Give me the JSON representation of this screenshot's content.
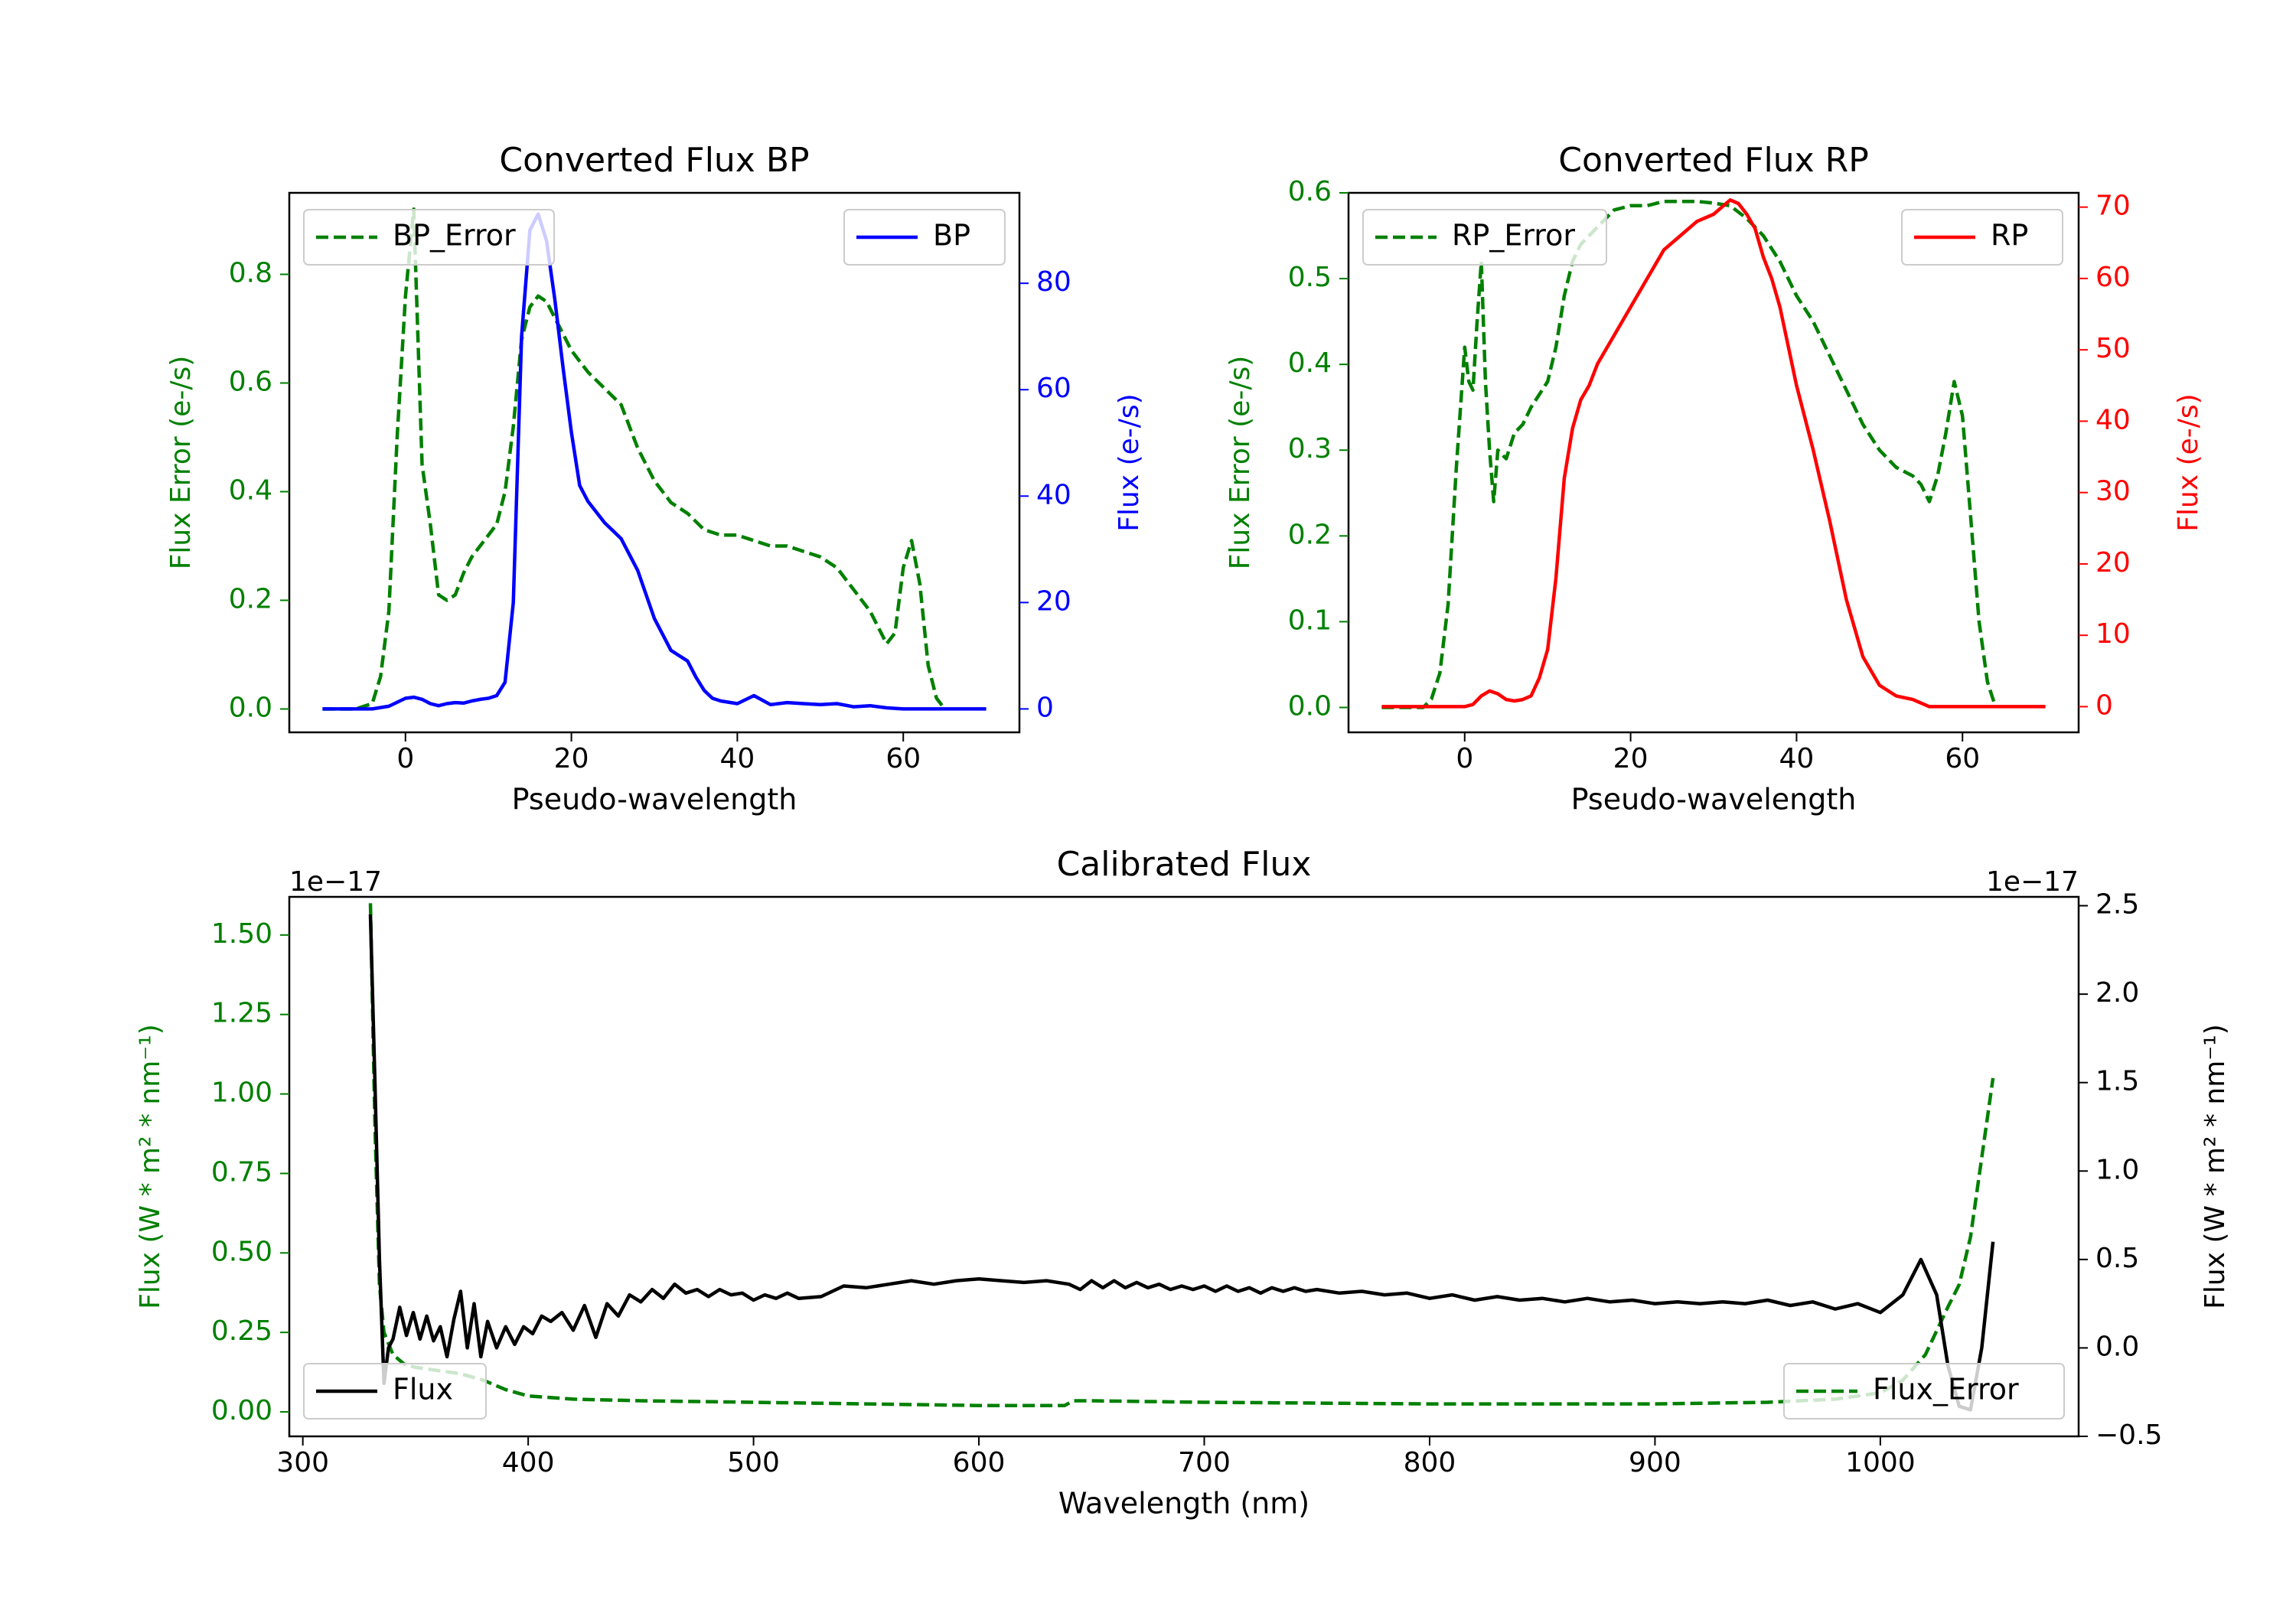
{
  "colors": {
    "bp": "#0000ff",
    "rp": "#ff0000",
    "error": "#008000",
    "flux": "#000000"
  },
  "chart_data": [
    {
      "type": "line",
      "title": "Converted Flux BP",
      "xlabel": "Pseudo-wavelength",
      "ylabel_left": "Flux Error (e-/s)",
      "ylabel_right": "Flux (e-/s)",
      "xlim": [
        -14,
        74
      ],
      "ylim_left": [
        -0.043,
        0.95
      ],
      "ylim_right": [
        -4.4,
        97
      ],
      "xticks": [
        "0",
        "20",
        "40",
        "60"
      ],
      "yticks_left": [
        "0.0",
        "0.2",
        "0.4",
        "0.6",
        "0.8"
      ],
      "yticks_right": [
        "0",
        "20",
        "40",
        "60",
        "80"
      ],
      "legend_left_label": "BP_Error",
      "legend_right_label": "BP",
      "series": [
        {
          "name": "BP_Error",
          "axis": "left",
          "style": "dashed",
          "x": [
            -10,
            -6,
            -4,
            -3,
            -2,
            -1,
            0,
            1,
            2,
            3,
            4,
            5,
            6,
            7,
            8,
            9,
            10,
            11,
            12,
            13,
            14,
            15,
            16,
            17,
            18,
            19,
            20,
            21,
            22,
            24,
            26,
            28,
            30,
            32,
            34,
            36,
            38,
            40,
            42,
            44,
            46,
            48,
            50,
            52,
            54,
            56,
            57,
            58,
            59,
            60,
            61,
            62,
            63,
            64,
            65
          ],
          "y": [
            0,
            0,
            0.01,
            0.06,
            0.18,
            0.5,
            0.76,
            0.92,
            0.45,
            0.34,
            0.21,
            0.2,
            0.21,
            0.25,
            0.28,
            0.3,
            0.32,
            0.34,
            0.4,
            0.52,
            0.68,
            0.74,
            0.76,
            0.75,
            0.72,
            0.69,
            0.66,
            0.64,
            0.62,
            0.59,
            0.56,
            0.48,
            0.42,
            0.38,
            0.36,
            0.33,
            0.32,
            0.32,
            0.31,
            0.3,
            0.3,
            0.29,
            0.28,
            0.26,
            0.22,
            0.18,
            0.15,
            0.12,
            0.14,
            0.26,
            0.31,
            0.23,
            0.08,
            0.02,
            0
          ]
        },
        {
          "name": "BP",
          "axis": "right",
          "style": "solid",
          "x": [
            -10,
            -4,
            -2,
            0,
            1,
            2,
            3,
            4,
            5,
            6,
            7,
            8,
            9,
            10,
            11,
            12,
            13,
            14,
            15,
            16,
            17,
            18,
            19,
            20,
            21,
            22,
            24,
            26,
            28,
            30,
            32,
            33,
            34,
            35,
            36,
            37,
            38,
            40,
            42,
            44,
            46,
            48,
            50,
            52,
            54,
            56,
            58,
            60,
            62,
            64,
            66,
            68,
            70
          ],
          "y": [
            0,
            0,
            0.5,
            2,
            2.2,
            1.8,
            1,
            0.6,
            1,
            1.2,
            1.1,
            1.5,
            1.8,
            2,
            2.5,
            5,
            20,
            70,
            90,
            93,
            88,
            77,
            64,
            52,
            42,
            39,
            35,
            32,
            26,
            17,
            11,
            10,
            9,
            6,
            3.5,
            2,
            1.5,
            1,
            2.5,
            0.8,
            1.2,
            1,
            0.8,
            1,
            0.4,
            0.6,
            0.2,
            0,
            0,
            0,
            0,
            0,
            0
          ]
        }
      ]
    },
    {
      "type": "line",
      "title": "Converted Flux RP",
      "xlabel": "Pseudo-wavelength",
      "ylabel_left": "Flux Error (e-/s)",
      "ylabel_right": "Flux (e-/s)",
      "xlim": [
        -14,
        74
      ],
      "ylim_left": [
        -0.029,
        0.6
      ],
      "ylim_right": [
        -3.6,
        72
      ],
      "xticks": [
        "0",
        "20",
        "40",
        "60"
      ],
      "yticks_left": [
        "0.0",
        "0.1",
        "0.2",
        "0.3",
        "0.4",
        "0.5",
        "0.6"
      ],
      "yticks_right": [
        "0",
        "10",
        "20",
        "30",
        "40",
        "50",
        "60",
        "70"
      ],
      "legend_left_label": "RP_Error",
      "legend_right_label": "RP",
      "series": [
        {
          "name": "RP_Error",
          "axis": "left",
          "style": "dashed",
          "x": [
            -10,
            -5,
            -4,
            -3,
            -2,
            -1,
            0,
            0.5,
            1,
            1.5,
            2,
            2.5,
            3,
            3.5,
            4,
            5,
            6,
            7,
            8,
            10,
            11,
            12,
            13,
            14,
            15,
            16,
            17,
            18,
            20,
            22,
            24,
            26,
            28,
            30,
            32,
            34,
            36,
            38,
            40,
            42,
            44,
            46,
            48,
            50,
            52,
            54,
            55,
            56,
            57,
            58,
            59,
            60,
            61,
            62,
            63,
            64
          ],
          "y": [
            0,
            0,
            0.01,
            0.04,
            0.12,
            0.28,
            0.42,
            0.38,
            0.37,
            0.45,
            0.52,
            0.38,
            0.3,
            0.24,
            0.3,
            0.29,
            0.32,
            0.33,
            0.35,
            0.38,
            0.42,
            0.48,
            0.52,
            0.54,
            0.55,
            0.56,
            0.57,
            0.58,
            0.585,
            0.585,
            0.59,
            0.59,
            0.59,
            0.588,
            0.585,
            0.57,
            0.55,
            0.52,
            0.48,
            0.45,
            0.41,
            0.37,
            0.33,
            0.3,
            0.28,
            0.27,
            0.26,
            0.24,
            0.27,
            0.32,
            0.38,
            0.34,
            0.22,
            0.1,
            0.03,
            0
          ]
        },
        {
          "name": "RP",
          "axis": "right",
          "style": "solid",
          "x": [
            -10,
            -2,
            0,
            1,
            2,
            3,
            4,
            5,
            6,
            7,
            8,
            9,
            10,
            11,
            12,
            13,
            14,
            15,
            16,
            18,
            20,
            22,
            24,
            26,
            28,
            30,
            31,
            32,
            33,
            34,
            35,
            36,
            37,
            38,
            40,
            42,
            44,
            46,
            48,
            50,
            52,
            54,
            56,
            58,
            60,
            62,
            64,
            66,
            68,
            70
          ],
          "y": [
            0,
            0,
            0,
            0.3,
            1.5,
            2.2,
            1.8,
            1,
            0.8,
            1,
            1.5,
            4,
            8,
            18,
            32,
            39,
            43,
            45,
            48,
            52,
            56,
            60,
            64,
            66,
            68,
            69,
            70,
            71,
            70.5,
            69,
            67,
            63,
            60,
            56,
            45,
            36,
            26,
            15,
            7,
            3,
            1.5,
            1,
            0,
            0,
            0,
            0,
            0,
            0,
            0,
            0
          ]
        }
      ]
    },
    {
      "type": "line",
      "title": "Calibrated Flux",
      "xlabel": "Wavelength (nm)",
      "ylabel_left": "Flux (W * m² * nm⁻¹)",
      "ylabel_right": "Flux (W * m² * nm⁻¹)",
      "offset_left": "1e−17",
      "offset_right": "1e−17",
      "xlim": [
        294,
        1088
      ],
      "ylim_left": [
        -0.077,
        1.62
      ],
      "ylim_right": [
        -0.5,
        2.55
      ],
      "xticks": [
        "300",
        "400",
        "500",
        "600",
        "700",
        "800",
        "900",
        "1000"
      ],
      "yticks_left": [
        "0.00",
        "0.25",
        "0.50",
        "0.75",
        "1.00",
        "1.25",
        "1.50"
      ],
      "yticks_right": [
        "−0.5",
        "0.0",
        "0.5",
        "1.0",
        "1.5",
        "2.0",
        "2.5"
      ],
      "legend_left_label": "Flux",
      "legend_right_label": "Flux_Error",
      "series": [
        {
          "name": "Flux_Error",
          "axis": "left",
          "style": "dashed",
          "x": [
            330,
            332,
            334,
            336,
            340,
            345,
            350,
            360,
            370,
            380,
            390,
            400,
            420,
            450,
            500,
            550,
            600,
            638,
            642,
            650,
            700,
            800,
            900,
            950,
            980,
            1000,
            1010,
            1020,
            1030,
            1035,
            1040,
            1045,
            1050
          ],
          "y": [
            1.6,
            0.9,
            0.4,
            0.25,
            0.18,
            0.15,
            0.14,
            0.13,
            0.12,
            0.1,
            0.07,
            0.05,
            0.04,
            0.035,
            0.03,
            0.025,
            0.02,
            0.02,
            0.035,
            0.035,
            0.03,
            0.025,
            0.025,
            0.03,
            0.04,
            0.06,
            0.1,
            0.18,
            0.33,
            0.4,
            0.55,
            0.8,
            1.05
          ]
        },
        {
          "name": "Flux",
          "axis": "right",
          "style": "solid",
          "x": [
            330,
            332,
            334,
            336,
            338,
            340,
            343,
            346,
            349,
            352,
            355,
            358,
            361,
            364,
            367,
            370,
            373,
            376,
            379,
            382,
            386,
            390,
            394,
            398,
            402,
            406,
            410,
            415,
            420,
            425,
            430,
            435,
            440,
            445,
            450,
            455,
            460,
            465,
            470,
            475,
            480,
            485,
            490,
            495,
            500,
            505,
            510,
            515,
            520,
            530,
            540,
            550,
            560,
            570,
            580,
            590,
            600,
            610,
            620,
            630,
            640,
            645,
            650,
            655,
            660,
            665,
            670,
            675,
            680,
            685,
            690,
            695,
            700,
            705,
            710,
            715,
            720,
            725,
            730,
            735,
            740,
            745,
            750,
            760,
            770,
            780,
            790,
            800,
            810,
            820,
            830,
            840,
            850,
            860,
            870,
            880,
            890,
            900,
            910,
            920,
            930,
            940,
            950,
            960,
            970,
            980,
            990,
            1000,
            1010,
            1018,
            1025,
            1030,
            1035,
            1040,
            1045,
            1050
          ],
          "y": [
            2.45,
            1.5,
            0.5,
            -0.2,
            0,
            0.05,
            0.23,
            0.07,
            0.2,
            0.05,
            0.18,
            0.04,
            0.12,
            -0.05,
            0.16,
            0.32,
            0,
            0.25,
            -0.05,
            0.15,
            0,
            0.12,
            0.02,
            0.12,
            0.08,
            0.18,
            0.15,
            0.2,
            0.1,
            0.24,
            0.06,
            0.25,
            0.18,
            0.3,
            0.26,
            0.33,
            0.28,
            0.36,
            0.31,
            0.33,
            0.29,
            0.33,
            0.3,
            0.31,
            0.27,
            0.3,
            0.28,
            0.31,
            0.28,
            0.29,
            0.35,
            0.34,
            0.36,
            0.38,
            0.36,
            0.38,
            0.39,
            0.38,
            0.37,
            0.38,
            0.36,
            0.33,
            0.38,
            0.34,
            0.38,
            0.34,
            0.37,
            0.34,
            0.36,
            0.33,
            0.35,
            0.33,
            0.35,
            0.32,
            0.35,
            0.32,
            0.34,
            0.31,
            0.34,
            0.32,
            0.34,
            0.32,
            0.33,
            0.31,
            0.32,
            0.3,
            0.31,
            0.28,
            0.3,
            0.27,
            0.29,
            0.27,
            0.28,
            0.26,
            0.28,
            0.26,
            0.27,
            0.25,
            0.26,
            0.25,
            0.26,
            0.25,
            0.27,
            0.24,
            0.26,
            0.22,
            0.25,
            0.2,
            0.3,
            0.5,
            0.3,
            -0.1,
            -0.33,
            -0.35,
            0,
            0.6
          ]
        }
      ]
    }
  ]
}
